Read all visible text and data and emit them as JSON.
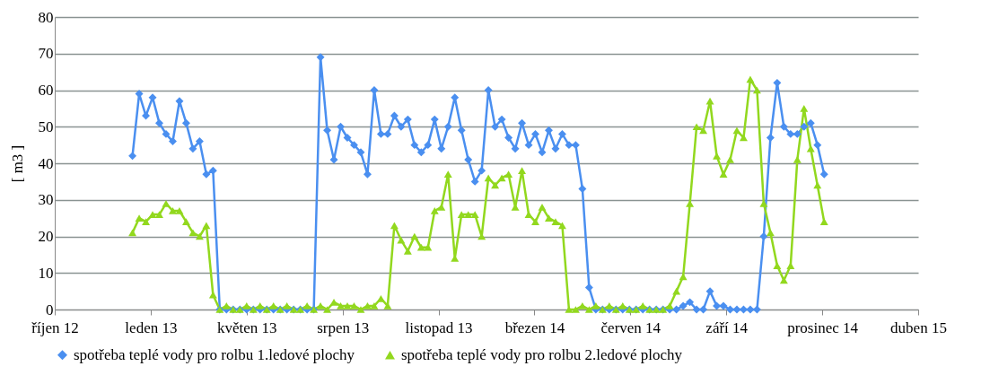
{
  "chart_data": {
    "type": "line",
    "x": [
      "2013-01-07",
      "2013-01-14",
      "2013-01-21",
      "2013-01-28",
      "2013-02-04",
      "2013-02-11",
      "2013-02-18",
      "2013-02-25",
      "2013-03-04",
      "2013-03-11",
      "2013-03-18",
      "2013-03-25",
      "2013-04-01",
      "2013-04-08",
      "2013-04-15",
      "2013-04-22",
      "2013-04-29",
      "2013-05-06",
      "2013-05-13",
      "2013-05-20",
      "2013-05-27",
      "2013-06-03",
      "2013-06-10",
      "2013-06-17",
      "2013-06-24",
      "2013-07-01",
      "2013-07-08",
      "2013-07-15",
      "2013-07-22",
      "2013-07-29",
      "2013-08-05",
      "2013-08-12",
      "2013-08-19",
      "2013-08-26",
      "2013-09-02",
      "2013-09-09",
      "2013-09-16",
      "2013-09-23",
      "2013-09-30",
      "2013-10-07",
      "2013-10-14",
      "2013-10-21",
      "2013-10-28",
      "2013-11-04",
      "2013-11-11",
      "2013-11-18",
      "2013-11-25",
      "2013-12-02",
      "2013-12-09",
      "2013-12-16",
      "2013-12-23",
      "2013-12-30",
      "2014-01-06",
      "2014-01-13",
      "2014-01-20",
      "2014-01-27",
      "2014-02-03",
      "2014-02-10",
      "2014-02-17",
      "2014-02-24",
      "2014-03-03",
      "2014-03-10",
      "2014-03-17",
      "2014-03-24",
      "2014-03-31",
      "2014-04-07",
      "2014-04-14",
      "2014-04-21",
      "2014-04-28",
      "2014-05-05",
      "2014-05-12",
      "2014-05-19",
      "2014-05-26",
      "2014-06-02",
      "2014-06-09",
      "2014-06-16",
      "2014-06-23",
      "2014-06-30",
      "2014-07-07",
      "2014-07-14",
      "2014-07-21",
      "2014-07-28",
      "2014-08-04",
      "2014-08-11",
      "2014-08-18",
      "2014-08-25",
      "2014-09-01",
      "2014-09-08",
      "2014-09-15",
      "2014-09-22",
      "2014-09-29",
      "2014-10-06",
      "2014-10-13",
      "2014-10-20",
      "2014-10-27",
      "2014-11-03",
      "2014-11-10",
      "2014-11-17",
      "2014-11-24",
      "2014-12-01",
      "2014-12-08",
      "2014-12-15",
      "2014-12-22",
      "2014-12-29"
    ],
    "series": [
      {
        "name": "spotřeba teplé vody pro rolbu 1.ledové plochy",
        "color": "#4a8ff0",
        "marker": "diamond",
        "values": [
          42,
          59,
          53,
          58,
          51,
          48,
          46,
          57,
          51,
          44,
          46,
          37,
          38,
          0,
          0,
          0,
          0,
          0,
          0,
          0,
          0,
          0,
          0,
          0,
          0,
          0,
          0,
          0,
          69,
          49,
          41,
          50,
          47,
          45,
          43,
          37,
          60,
          48,
          48,
          53,
          50,
          52,
          45,
          43,
          45,
          52,
          44,
          50,
          58,
          49,
          41,
          35,
          38,
          60,
          50,
          52,
          47,
          44,
          51,
          45,
          48,
          43,
          49,
          44,
          48,
          45,
          45,
          33,
          6,
          0,
          0,
          0,
          0,
          0,
          0,
          0,
          0,
          0,
          0,
          0,
          0,
          0,
          1,
          2,
          0,
          0,
          5,
          1,
          1,
          0,
          0,
          0,
          0,
          0,
          20,
          47,
          62,
          50,
          48,
          48,
          50,
          51,
          45,
          37
        ]
      },
      {
        "name": "spotřeba teplé vody pro rolbu 2.ledové plochy",
        "color": "#92d81e",
        "marker": "triangle",
        "values": [
          21,
          25,
          24,
          26,
          26,
          29,
          27,
          27,
          24,
          21,
          20,
          23,
          4,
          0,
          1,
          0,
          0,
          1,
          0,
          1,
          0,
          1,
          0,
          1,
          0,
          0,
          1,
          0,
          1,
          0,
          2,
          1,
          1,
          1,
          0,
          1,
          1,
          3,
          1,
          23,
          19,
          16,
          20,
          17,
          17,
          27,
          28,
          37,
          14,
          26,
          26,
          26,
          20,
          36,
          34,
          36,
          37,
          28,
          38,
          26,
          24,
          28,
          25,
          24,
          23,
          0,
          0,
          1,
          0,
          1,
          0,
          1,
          0,
          1,
          0,
          0,
          1,
          0,
          0,
          0,
          1,
          5,
          9,
          29,
          50,
          49,
          57,
          42,
          37,
          41,
          49,
          47,
          63,
          60,
          29,
          21,
          12,
          8,
          12,
          41,
          55,
          44,
          34,
          24
        ]
      }
    ],
    "xlim": [
      "2012-10-18",
      "2015-04-06"
    ],
    "xticks": [
      {
        "value": "2012-10-18",
        "label": "říjen 12"
      },
      {
        "value": "2013-01-26",
        "label": "leden 13"
      },
      {
        "value": "2013-05-06",
        "label": "květen 13"
      },
      {
        "value": "2013-08-14",
        "label": "srpen 13"
      },
      {
        "value": "2013-11-22",
        "label": "listopad 13"
      },
      {
        "value": "2014-03-02",
        "label": "březen 14"
      },
      {
        "value": "2014-06-10",
        "label": "červen 14"
      },
      {
        "value": "2014-09-18",
        "label": "září 14"
      },
      {
        "value": "2014-12-27",
        "label": "prosinec 14"
      },
      {
        "value": "2015-04-06",
        "label": "duben 15"
      }
    ],
    "ylim": [
      0,
      80
    ],
    "yticks": [
      0,
      10,
      20,
      30,
      40,
      50,
      60,
      70,
      80
    ],
    "ylabel": "[ m3 ]",
    "grid": "y",
    "legend": "bottom",
    "line_style": "solid"
  }
}
